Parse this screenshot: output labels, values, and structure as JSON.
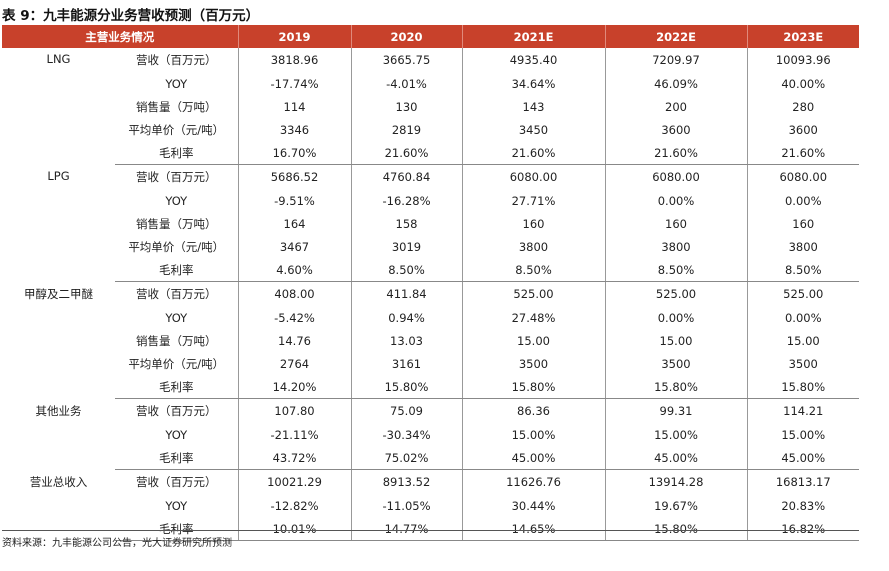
{
  "title": "表 9：九丰能源分业务营收预测（百万元）",
  "header": {
    "label": "主营业务情况",
    "years": [
      "2019",
      "2020",
      "2021E",
      "2022E",
      "2023E"
    ]
  },
  "groups": [
    {
      "segment": "LNG",
      "rows": [
        {
          "metric": "营收（百万元）",
          "values": [
            "3818.96",
            "3665.75",
            "4935.40",
            "7209.97",
            "10093.96"
          ]
        },
        {
          "metric": "YOY",
          "values": [
            "-17.74%",
            "-4.01%",
            "34.64%",
            "46.09%",
            "40.00%"
          ]
        },
        {
          "metric": "销售量（万吨）",
          "values": [
            "114",
            "130",
            "143",
            "200",
            "280"
          ]
        },
        {
          "metric": "平均单价（元/吨）",
          "values": [
            "3346",
            "2819",
            "3450",
            "3600",
            "3600"
          ]
        },
        {
          "metric": "毛利率",
          "values": [
            "16.70%",
            "21.60%",
            "21.60%",
            "21.60%",
            "21.60%"
          ]
        }
      ]
    },
    {
      "segment": "LPG",
      "rows": [
        {
          "metric": "营收（百万元）",
          "values": [
            "5686.52",
            "4760.84",
            "6080.00",
            "6080.00",
            "6080.00"
          ]
        },
        {
          "metric": "YOY",
          "values": [
            "-9.51%",
            "-16.28%",
            "27.71%",
            "0.00%",
            "0.00%"
          ]
        },
        {
          "metric": "销售量（万吨）",
          "values": [
            "164",
            "158",
            "160",
            "160",
            "160"
          ]
        },
        {
          "metric": "平均单价（元/吨）",
          "values": [
            "3467",
            "3019",
            "3800",
            "3800",
            "3800"
          ]
        },
        {
          "metric": "毛利率",
          "values": [
            "4.60%",
            "8.50%",
            "8.50%",
            "8.50%",
            "8.50%"
          ]
        }
      ]
    },
    {
      "segment": "甲醇及二甲醚",
      "rows": [
        {
          "metric": "营收（百万元）",
          "values": [
            "408.00",
            "411.84",
            "525.00",
            "525.00",
            "525.00"
          ]
        },
        {
          "metric": "YOY",
          "values": [
            "-5.42%",
            "0.94%",
            "27.48%",
            "0.00%",
            "0.00%"
          ]
        },
        {
          "metric": "销售量（万吨）",
          "values": [
            "14.76",
            "13.03",
            "15.00",
            "15.00",
            "15.00"
          ]
        },
        {
          "metric": "平均单价（元/吨）",
          "values": [
            "2764",
            "3161",
            "3500",
            "3500",
            "3500"
          ]
        },
        {
          "metric": "毛利率",
          "values": [
            "14.20%",
            "15.80%",
            "15.80%",
            "15.80%",
            "15.80%"
          ]
        }
      ]
    },
    {
      "segment": "其他业务",
      "rows": [
        {
          "metric": "营收（百万元）",
          "values": [
            "107.80",
            "75.09",
            "86.36",
            "99.31",
            "114.21"
          ]
        },
        {
          "metric": "YOY",
          "values": [
            "-21.11%",
            "-30.34%",
            "15.00%",
            "15.00%",
            "15.00%"
          ]
        },
        {
          "metric": "毛利率",
          "values": [
            "43.72%",
            "75.02%",
            "45.00%",
            "45.00%",
            "45.00%"
          ]
        }
      ]
    },
    {
      "segment": "营业总收入",
      "rows": [
        {
          "metric": "营收（百万元）",
          "values": [
            "10021.29",
            "8913.52",
            "11626.76",
            "13914.28",
            "16813.17"
          ]
        },
        {
          "metric": "YOY",
          "values": [
            "-12.82%",
            "-11.05%",
            "30.44%",
            "19.67%",
            "20.83%"
          ]
        },
        {
          "metric": "毛利率",
          "values": [
            "10.01%",
            "14.77%",
            "14.65%",
            "15.80%",
            "16.82%"
          ]
        }
      ]
    }
  ],
  "source": "资料来源：九丰能源公司公告，光大证券研究所预测"
}
